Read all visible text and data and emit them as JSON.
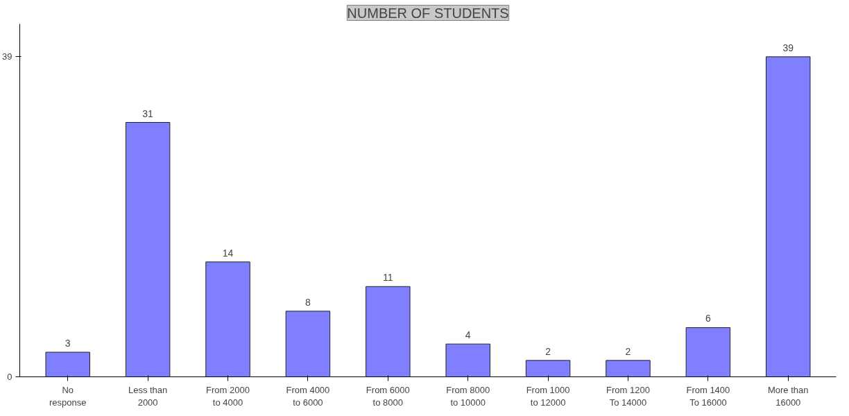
{
  "chart_data": {
    "type": "bar",
    "title": "NUMBER OF STUDENTS",
    "categories": [
      "No response",
      "Less than 2000",
      "From 2000 to 4000",
      "From 4000 to 6000",
      "From 6000 to 8000",
      "From 8000 to 10000",
      "From 1000 to 12000",
      "From 1200 To 14000",
      "From 1400 To 16000",
      "More than 16000"
    ],
    "values": [
      3,
      31,
      14,
      8,
      11,
      4,
      2,
      2,
      6,
      39
    ],
    "color": "#7f7fff",
    "ylim": [
      0,
      43
    ],
    "yticks": [
      0,
      39
    ],
    "data_labels": true,
    "grid": false
  }
}
